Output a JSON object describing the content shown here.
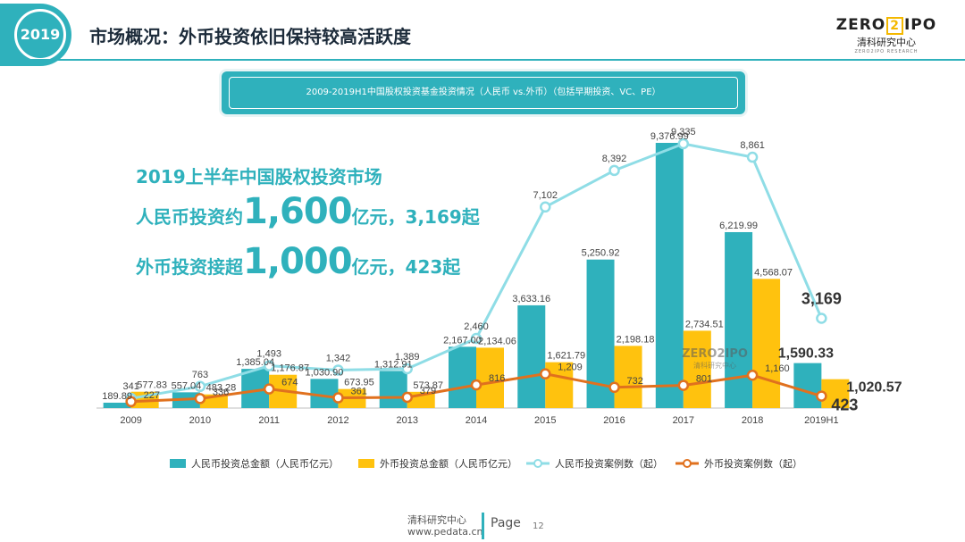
{
  "header": {
    "year_badge": "2019",
    "title": "市场概况：外币投资依旧保持较高活跃度"
  },
  "logo": {
    "left": "ZERO",
    "mark": "2",
    "right": "IPO",
    "sub": "清科研究中心",
    "tiny": "ZERO2IPO RESEARCH"
  },
  "banner": {
    "text": "2009-2019H1中国股权投资基金投资情况（人民币 vs.外币）（包括早期投资、VC、PE）"
  },
  "highlights": {
    "line1": "2019上半年中国股权投资市场",
    "line2_prefix": "人民币投资约",
    "line2_big": "1,600",
    "line2_suffix": "亿元，3,169起",
    "line3_prefix": "外币投资接超",
    "line3_big": "1,000",
    "line3_suffix": "亿元，423起"
  },
  "footer": {
    "org": "清科研究中心",
    "url": "www.pedata.cn",
    "page_label": "Page",
    "page_number": "12"
  },
  "colors": {
    "teal": "#2fb1bc",
    "yellow": "#ffc20e",
    "light_teal": "#8fdde6",
    "orange": "#e0711e"
  },
  "chart_data": {
    "type": "bar",
    "categories": [
      "2009",
      "2010",
      "2011",
      "2012",
      "2013",
      "2014",
      "2015",
      "2016",
      "2017",
      "2018",
      "2019H1"
    ],
    "series": [
      {
        "name": "人民币投资总金额（人民币亿元）",
        "kind": "bar",
        "axis": "left",
        "values": [
          189.89,
          557.04,
          1385.04,
          1030.9,
          1312.91,
          2167.0,
          3633.16,
          5250.92,
          9376.99,
          6219.99,
          1590.33
        ],
        "labels": [
          "189.89",
          "557.04",
          "1,385.04",
          "1,030.90",
          "1,312.91",
          "2,167.00",
          "3,633.16",
          "5,250.92",
          "9,376.99",
          "6,219.99",
          "1,590.33"
        ]
      },
      {
        "name": "外币投资总金额（人民币亿元）",
        "kind": "bar",
        "axis": "left",
        "values": [
          577.83,
          483.28,
          1176.87,
          673.95,
          573.87,
          2134.06,
          1621.79,
          2198.18,
          2734.51,
          4568.07,
          1020.57
        ],
        "labels": [
          "577.83",
          "483.28",
          "1,176.87",
          "673.95",
          "573.87",
          "2,134.06",
          "1,621.79",
          "2,198.18",
          "2,734.51",
          "4,568.07",
          "1,020.57"
        ]
      },
      {
        "name": "人民币投资案例数（起）",
        "kind": "line",
        "axis": "right",
        "values": [
          341,
          763,
          1493,
          1342,
          1389,
          2460,
          7102,
          8392,
          9335,
          8861,
          3169
        ],
        "labels": [
          "341",
          "763",
          "1,493",
          "1,342",
          "1,389",
          "2,460",
          "7,102",
          "8,392",
          "9,335",
          "8,861",
          "3,169"
        ]
      },
      {
        "name": "外币投资案例数（起）",
        "kind": "line",
        "axis": "right",
        "values": [
          227,
          336,
          674,
          361,
          379,
          816,
          1209,
          732,
          801,
          1160,
          423
        ],
        "labels": [
          "227",
          "336",
          "674",
          "361",
          "379",
          "816",
          "1,209",
          "732",
          "801",
          "1,160",
          "423"
        ]
      }
    ]
  }
}
